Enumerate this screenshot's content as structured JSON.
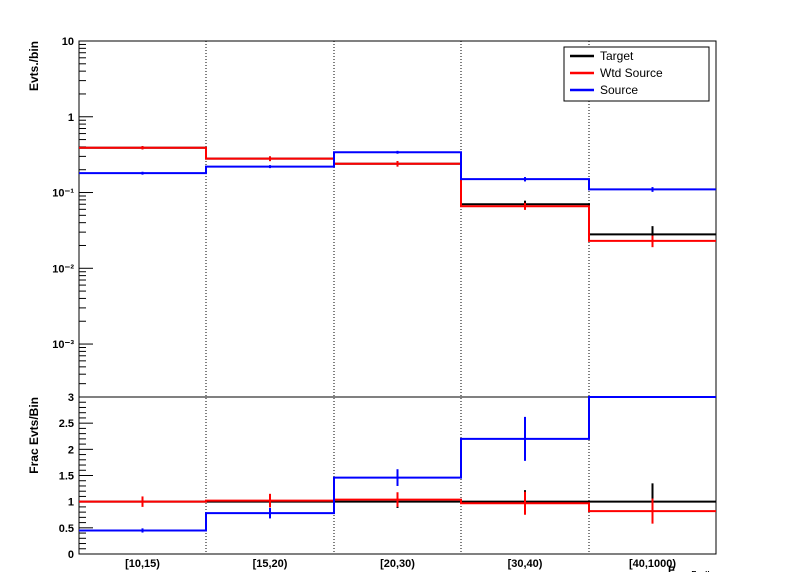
{
  "chart_data": [
    {
      "type": "step",
      "panel": "upper",
      "ylabel": "Evts./bin",
      "yscale": "log",
      "ylim": [
        0.0002,
        10
      ],
      "y_tick_labels": [
        "10",
        "1",
        "10⁻¹",
        "10⁻²",
        "10⁻³"
      ],
      "categories": [
        "[10,15)",
        "[15,20)",
        "[20,30)",
        "[30,40)",
        "[40,1000)"
      ],
      "legend": {
        "placement": "top-right",
        "entries": [
          "Target",
          "Wtd Source",
          "Source"
        ]
      },
      "series": [
        {
          "name": "Target",
          "color": "#000000",
          "values": [
            0.39,
            0.28,
            0.24,
            0.07,
            0.028
          ],
          "errors": [
            0.02,
            0.02,
            0.02,
            0.008,
            0.008
          ]
        },
        {
          "name": "Wtd Source",
          "color": "#ff0000",
          "values": [
            0.39,
            0.28,
            0.24,
            0.066,
            0.023
          ],
          "errors": [
            0.02,
            0.02,
            0.02,
            0.007,
            0.004
          ]
        },
        {
          "name": "Source",
          "color": "#0000ff",
          "values": [
            0.18,
            0.22,
            0.34,
            0.15,
            0.11
          ],
          "errors": [
            0.008,
            0.01,
            0.015,
            0.01,
            0.008
          ]
        }
      ]
    },
    {
      "type": "step",
      "panel": "lower",
      "ylabel": "Frac Evts/Bin",
      "ylim": [
        0,
        3
      ],
      "y_tick_labels": [
        "0",
        "0.5",
        "1",
        "1.5",
        "2",
        "2.5",
        "3"
      ],
      "xlabel": "E",
      "xlabel_sub": "maxFcell",
      "categories": [
        "[10,15)",
        "[15,20)",
        "[20,30)",
        "[30,40)",
        "[40,1000)"
      ],
      "series": [
        {
          "name": "Target",
          "color": "#000000",
          "values": [
            1.0,
            1.0,
            1.0,
            1.0,
            1.0
          ],
          "errors": [
            0.0,
            0.0,
            0.12,
            0.22,
            0.35
          ]
        },
        {
          "name": "Wtd Source",
          "color": "#ff0000",
          "values": [
            1.0,
            1.02,
            1.04,
            0.97,
            0.82
          ],
          "errors": [
            0.1,
            0.13,
            0.14,
            0.22,
            0.24
          ]
        },
        {
          "name": "Source",
          "color": "#0000ff",
          "values": [
            0.45,
            0.78,
            1.46,
            2.2,
            3.0
          ],
          "errors": [
            0.04,
            0.1,
            0.16,
            0.42,
            0.0
          ]
        }
      ]
    }
  ]
}
